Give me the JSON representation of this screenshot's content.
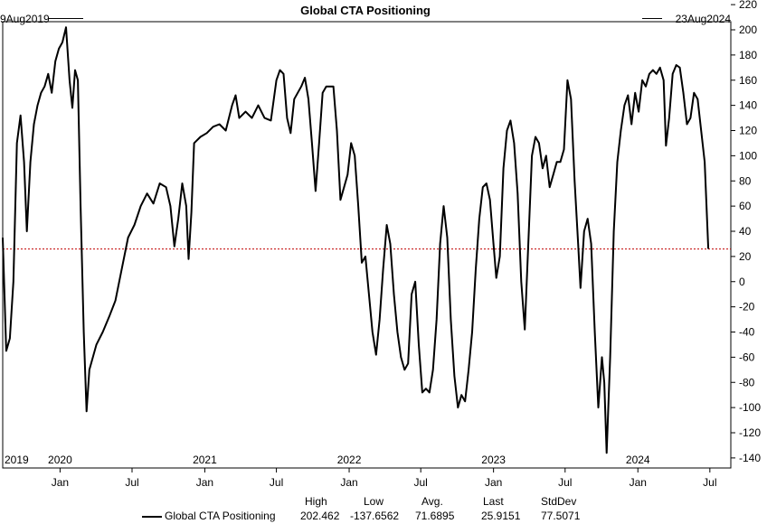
{
  "title": "Global CTA Positioning",
  "range": {
    "start": "9Aug2019",
    "end": "23Aug2024"
  },
  "stats": {
    "series_name": "Global CTA Positioning",
    "headers": [
      "High",
      "Low",
      "Avg.",
      "Last",
      "StdDev"
    ],
    "values": [
      "202.462",
      "-137.6562",
      "71.6895",
      "25.9151",
      "77.5071"
    ]
  },
  "chart_data": {
    "type": "line",
    "title": "Global CTA Positioning",
    "ylim": [
      -150,
      220
    ],
    "y_ticks": [
      220,
      200,
      180,
      160,
      140,
      120,
      100,
      80,
      60,
      40,
      20,
      0,
      -20,
      -40,
      -60,
      -80,
      -100,
      -120,
      -140
    ],
    "y_axis_side": "right",
    "xlim": [
      "2019-08-09",
      "2024-08-23"
    ],
    "year_labels": [
      {
        "date": "2019-08-09",
        "label": "2019"
      },
      {
        "date": "2020-01-01",
        "label": "2020"
      },
      {
        "date": "2021-01-01",
        "label": "2021"
      },
      {
        "date": "2022-01-01",
        "label": "2022"
      },
      {
        "date": "2023-01-01",
        "label": "2023"
      },
      {
        "date": "2024-01-01",
        "label": "2024"
      }
    ],
    "month_ticks": [
      {
        "date": "2020-01-01",
        "label": "Jan"
      },
      {
        "date": "2020-07-01",
        "label": "Jul"
      },
      {
        "date": "2021-01-01",
        "label": "Jan"
      },
      {
        "date": "2021-07-01",
        "label": "Jul"
      },
      {
        "date": "2022-01-01",
        "label": "Jan"
      },
      {
        "date": "2022-07-01",
        "label": "Jul"
      },
      {
        "date": "2023-01-01",
        "label": "Jan"
      },
      {
        "date": "2023-07-01",
        "label": "Jul"
      },
      {
        "date": "2024-01-01",
        "label": "Jan"
      },
      {
        "date": "2024-07-01",
        "label": "Jul"
      }
    ],
    "reference_line": {
      "value": 25.9151,
      "color": "#c00000",
      "style": "dotted"
    },
    "line_color": "#000000",
    "grid": false,
    "series": [
      {
        "name": "Global CTA Positioning",
        "points": [
          [
            "2019-08-09",
            35
          ],
          [
            "2019-08-18",
            -55
          ],
          [
            "2019-08-27",
            -45
          ],
          [
            "2019-09-05",
            0
          ],
          [
            "2019-09-14",
            110
          ],
          [
            "2019-09-23",
            132
          ],
          [
            "2019-10-02",
            95
          ],
          [
            "2019-10-09",
            40
          ],
          [
            "2019-10-18",
            95
          ],
          [
            "2019-10-27",
            125
          ],
          [
            "2019-11-05",
            140
          ],
          [
            "2019-11-14",
            150
          ],
          [
            "2019-11-23",
            155
          ],
          [
            "2019-12-02",
            165
          ],
          [
            "2019-12-11",
            150
          ],
          [
            "2019-12-20",
            175
          ],
          [
            "2019-12-29",
            185
          ],
          [
            "2020-01-07",
            190
          ],
          [
            "2020-01-16",
            202
          ],
          [
            "2020-01-25",
            160
          ],
          [
            "2020-02-01",
            138
          ],
          [
            "2020-02-08",
            168
          ],
          [
            "2020-02-15",
            160
          ],
          [
            "2020-02-22",
            60
          ],
          [
            "2020-03-01",
            -40
          ],
          [
            "2020-03-08",
            -103
          ],
          [
            "2020-03-15",
            -70
          ],
          [
            "2020-03-24",
            -60
          ],
          [
            "2020-04-02",
            -50
          ],
          [
            "2020-04-18",
            -40
          ],
          [
            "2020-05-04",
            -28
          ],
          [
            "2020-05-20",
            -15
          ],
          [
            "2020-06-05",
            10
          ],
          [
            "2020-06-21",
            35
          ],
          [
            "2020-07-07",
            45
          ],
          [
            "2020-07-23",
            60
          ],
          [
            "2020-08-08",
            70
          ],
          [
            "2020-08-24",
            62
          ],
          [
            "2020-09-09",
            78
          ],
          [
            "2020-09-25",
            75
          ],
          [
            "2020-10-06",
            60
          ],
          [
            "2020-10-16",
            28
          ],
          [
            "2020-10-26",
            50
          ],
          [
            "2020-11-05",
            78
          ],
          [
            "2020-11-15",
            60
          ],
          [
            "2020-11-21",
            18
          ],
          [
            "2020-11-28",
            55
          ],
          [
            "2020-12-05",
            110
          ],
          [
            "2020-12-21",
            115
          ],
          [
            "2021-01-06",
            118
          ],
          [
            "2021-01-22",
            123
          ],
          [
            "2021-02-07",
            125
          ],
          [
            "2021-02-23",
            120
          ],
          [
            "2021-03-11",
            140
          ],
          [
            "2021-03-20",
            148
          ],
          [
            "2021-03-29",
            130
          ],
          [
            "2021-04-14",
            135
          ],
          [
            "2021-04-30",
            130
          ],
          [
            "2021-05-16",
            140
          ],
          [
            "2021-06-01",
            130
          ],
          [
            "2021-06-17",
            128
          ],
          [
            "2021-07-01",
            160
          ],
          [
            "2021-07-10",
            168
          ],
          [
            "2021-07-19",
            165
          ],
          [
            "2021-07-28",
            130
          ],
          [
            "2021-08-06",
            118
          ],
          [
            "2021-08-15",
            145
          ],
          [
            "2021-08-24",
            150
          ],
          [
            "2021-09-02",
            155
          ],
          [
            "2021-09-11",
            162
          ],
          [
            "2021-09-20",
            145
          ],
          [
            "2021-09-29",
            110
          ],
          [
            "2021-10-08",
            72
          ],
          [
            "2021-10-17",
            110
          ],
          [
            "2021-10-26",
            150
          ],
          [
            "2021-11-04",
            155
          ],
          [
            "2021-11-13",
            155
          ],
          [
            "2021-11-22",
            155
          ],
          [
            "2021-12-01",
            120
          ],
          [
            "2021-12-10",
            65
          ],
          [
            "2021-12-19",
            75
          ],
          [
            "2021-12-28",
            85
          ],
          [
            "2022-01-06",
            110
          ],
          [
            "2022-01-15",
            100
          ],
          [
            "2022-01-24",
            60
          ],
          [
            "2022-02-02",
            15
          ],
          [
            "2022-02-11",
            20
          ],
          [
            "2022-02-20",
            -10
          ],
          [
            "2022-02-29",
            -40
          ],
          [
            "2022-03-10",
            -58
          ],
          [
            "2022-03-19",
            -30
          ],
          [
            "2022-03-28",
            10
          ],
          [
            "2022-04-06",
            45
          ],
          [
            "2022-04-15",
            30
          ],
          [
            "2022-04-24",
            -10
          ],
          [
            "2022-05-03",
            -40
          ],
          [
            "2022-05-12",
            -60
          ],
          [
            "2022-05-21",
            -70
          ],
          [
            "2022-05-30",
            -65
          ],
          [
            "2022-06-08",
            -10
          ],
          [
            "2022-06-17",
            0
          ],
          [
            "2022-06-26",
            -50
          ],
          [
            "2022-07-05",
            -88
          ],
          [
            "2022-07-14",
            -85
          ],
          [
            "2022-07-23",
            -88
          ],
          [
            "2022-08-01",
            -70
          ],
          [
            "2022-08-10",
            -30
          ],
          [
            "2022-08-19",
            30
          ],
          [
            "2022-08-28",
            60
          ],
          [
            "2022-09-06",
            35
          ],
          [
            "2022-09-15",
            -30
          ],
          [
            "2022-09-24",
            -75
          ],
          [
            "2022-10-03",
            -100
          ],
          [
            "2022-10-12",
            -90
          ],
          [
            "2022-10-21",
            -95
          ],
          [
            "2022-10-30",
            -70
          ],
          [
            "2022-11-08",
            -40
          ],
          [
            "2022-11-17",
            10
          ],
          [
            "2022-11-26",
            50
          ],
          [
            "2022-12-05",
            75
          ],
          [
            "2022-12-14",
            78
          ],
          [
            "2022-12-23",
            65
          ],
          [
            "2023-01-01",
            30
          ],
          [
            "2023-01-08",
            3
          ],
          [
            "2023-01-17",
            20
          ],
          [
            "2023-01-26",
            90
          ],
          [
            "2023-02-04",
            120
          ],
          [
            "2023-02-13",
            128
          ],
          [
            "2023-02-22",
            110
          ],
          [
            "2023-03-03",
            70
          ],
          [
            "2023-03-12",
            0
          ],
          [
            "2023-03-21",
            -38
          ],
          [
            "2023-03-30",
            30
          ],
          [
            "2023-04-08",
            100
          ],
          [
            "2023-04-17",
            115
          ],
          [
            "2023-04-26",
            110
          ],
          [
            "2023-05-05",
            90
          ],
          [
            "2023-05-14",
            100
          ],
          [
            "2023-05-23",
            75
          ],
          [
            "2023-06-01",
            85
          ],
          [
            "2023-06-10",
            95
          ],
          [
            "2023-06-19",
            95
          ],
          [
            "2023-06-28",
            105
          ],
          [
            "2023-07-07",
            160
          ],
          [
            "2023-07-16",
            145
          ],
          [
            "2023-07-25",
            80
          ],
          [
            "2023-08-03",
            30
          ],
          [
            "2023-08-09",
            -5
          ],
          [
            "2023-08-18",
            40
          ],
          [
            "2023-08-27",
            50
          ],
          [
            "2023-09-05",
            30
          ],
          [
            "2023-09-14",
            -40
          ],
          [
            "2023-09-23",
            -100
          ],
          [
            "2023-10-02",
            -60
          ],
          [
            "2023-10-08",
            -80
          ],
          [
            "2023-10-14",
            -136
          ],
          [
            "2023-10-23",
            -60
          ],
          [
            "2023-11-01",
            40
          ],
          [
            "2023-11-10",
            95
          ],
          [
            "2023-11-19",
            120
          ],
          [
            "2023-11-28",
            140
          ],
          [
            "2023-12-07",
            148
          ],
          [
            "2023-12-16",
            125
          ],
          [
            "2023-12-25",
            150
          ],
          [
            "2024-01-03",
            135
          ],
          [
            "2024-01-12",
            160
          ],
          [
            "2024-01-21",
            155
          ],
          [
            "2024-01-30",
            165
          ],
          [
            "2024-02-08",
            168
          ],
          [
            "2024-02-17",
            165
          ],
          [
            "2024-02-26",
            170
          ],
          [
            "2024-03-06",
            160
          ],
          [
            "2024-03-12",
            108
          ],
          [
            "2024-03-20",
            130
          ],
          [
            "2024-03-29",
            165
          ],
          [
            "2024-04-07",
            172
          ],
          [
            "2024-04-16",
            170
          ],
          [
            "2024-04-25",
            150
          ],
          [
            "2024-05-04",
            125
          ],
          [
            "2024-05-13",
            130
          ],
          [
            "2024-05-22",
            150
          ],
          [
            "2024-05-31",
            145
          ],
          [
            "2024-06-09",
            120
          ],
          [
            "2024-06-18",
            95
          ],
          [
            "2024-06-27",
            26
          ]
        ]
      }
    ]
  }
}
